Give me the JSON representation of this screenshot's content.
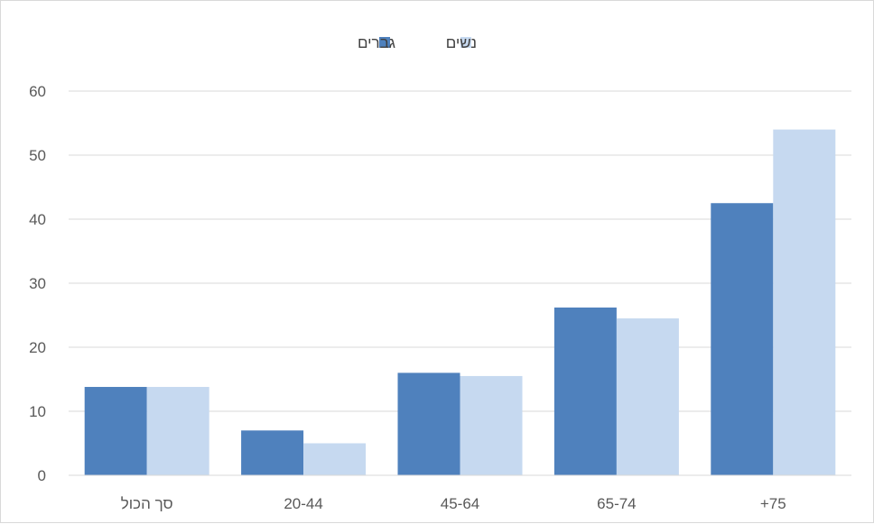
{
  "chart_data": {
    "type": "bar",
    "categories": [
      "סך הכול",
      "20-44",
      "45-64",
      "65-74",
      "+75"
    ],
    "series": [
      {
        "name": "גברים",
        "values": [
          13.8,
          7.0,
          16.0,
          26.2,
          42.5
        ],
        "color": "#4f81bd"
      },
      {
        "name": "נשים",
        "values": [
          13.8,
          5.0,
          15.5,
          24.5,
          54.0
        ],
        "color": "#c6d9f0"
      }
    ],
    "title": "",
    "xlabel": "",
    "ylabel": "",
    "ylim": [
      0,
      60
    ],
    "yticks": [
      "0",
      "10",
      "20",
      "30",
      "40",
      "50",
      "60"
    ],
    "grid": true,
    "legend_position": "top-center"
  }
}
